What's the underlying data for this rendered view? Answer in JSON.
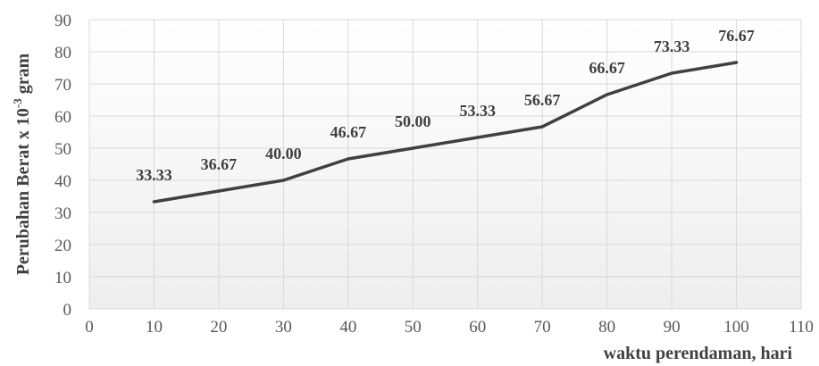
{
  "chart_data": {
    "type": "line",
    "xlabel": "waktu perendaman, hari",
    "ylabel": "Perubahan Berat x 10",
    "ylabel_exponent": "-3",
    "ylabel_unit": " gram",
    "xlim": [
      0,
      110
    ],
    "ylim": [
      0,
      90
    ],
    "x_ticks": [
      "0",
      "10",
      "20",
      "30",
      "40",
      "50",
      "60",
      "70",
      "80",
      "90",
      "100",
      "110"
    ],
    "y_ticks": [
      "0",
      "10",
      "20",
      "30",
      "40",
      "50",
      "60",
      "70",
      "80",
      "90"
    ],
    "grid": true,
    "x": [
      10,
      20,
      30,
      40,
      50,
      60,
      70,
      80,
      90,
      100
    ],
    "series": [
      {
        "values": [
          33.33,
          36.67,
          40.0,
          46.67,
          50.0,
          53.33,
          56.67,
          66.67,
          73.33,
          76.67
        ],
        "data_labels": [
          "33.33",
          "36.67",
          "40.00",
          "46.67",
          "50.00",
          "53.33",
          "56.67",
          "66.67",
          "73.33",
          "76.67"
        ],
        "color": "#404040"
      }
    ]
  }
}
